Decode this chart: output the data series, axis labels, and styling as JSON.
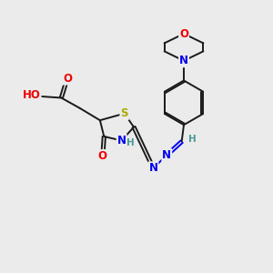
{
  "bg_color": "#ebebeb",
  "bond_color": "#1a1a1a",
  "atom_colors": {
    "C": "#1a1a1a",
    "H": "#4a9a9a",
    "N": "#0000ee",
    "O": "#ee0000",
    "S": "#aaaa00"
  },
  "font_size_atom": 8.5,
  "font_size_H": 7.5,
  "lw": 1.4,
  "doffset": 0.055
}
